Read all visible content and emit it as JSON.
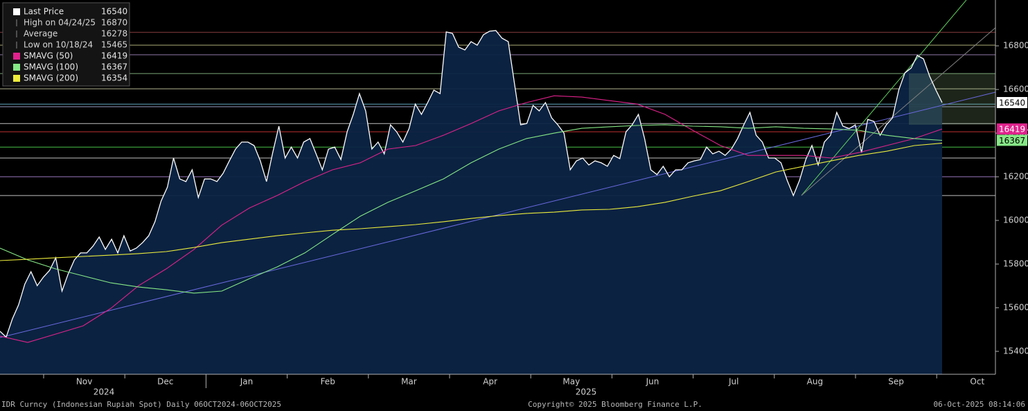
{
  "chart_data": {
    "type": "line",
    "footer_left": "IDR Curncy (Indonesian Rupiah Spot) Daily 06OCT2024-06OCT2025",
    "footer_center": "Copyright© 2025 Bloomberg Finance L.P.",
    "footer_right": "06-Oct-2025 08:14:06",
    "month_labels": [
      null,
      "Nov",
      "Dec",
      "Jan",
      "Feb",
      "Mar",
      "Apr",
      "May",
      "Jun",
      "Jul",
      "Aug",
      "Sep",
      "Oct"
    ],
    "year_labels": [
      "2024",
      "2025"
    ],
    "ylim": [
      15295,
      17010
    ],
    "yticks": [
      15400,
      15600,
      15800,
      16000,
      16200,
      16400,
      16600,
      16800
    ],
    "series": [
      {
        "name": "Last Price",
        "color": "#ffffff",
        "last": 16540,
        "values": [
          15492,
          15465,
          15549,
          15613,
          15708,
          15765,
          15701,
          15740,
          15771,
          15829,
          15676,
          15755,
          15819,
          15851,
          15851,
          15882,
          15924,
          15867,
          15914,
          15851,
          15930,
          15860,
          15873,
          15898,
          15930,
          15994,
          16089,
          16152,
          16286,
          16190,
          16178,
          16232,
          16105,
          16190,
          16190,
          16178,
          16216,
          16273,
          16327,
          16359,
          16359,
          16343,
          16273,
          16178,
          16311,
          16432,
          16286,
          16336,
          16286,
          16359,
          16375,
          16305,
          16232,
          16327,
          16336,
          16279,
          16406,
          16486,
          16581,
          16502,
          16327,
          16359,
          16305,
          16438,
          16406,
          16359,
          16421,
          16533,
          16486,
          16540,
          16597,
          16581,
          16864,
          16857,
          16794,
          16781,
          16819,
          16803,
          16851,
          16867,
          16870,
          16835,
          16819,
          16629,
          16438,
          16444,
          16527,
          16502,
          16540,
          16470,
          16438,
          16400,
          16232,
          16273,
          16286,
          16254,
          16273,
          16264,
          16248,
          16298,
          16283,
          16406,
          16438,
          16486,
          16375,
          16232,
          16210,
          16248,
          16200,
          16232,
          16232,
          16264,
          16273,
          16279,
          16336,
          16305,
          16317,
          16298,
          16327,
          16375,
          16438,
          16495,
          16390,
          16359,
          16286,
          16286,
          16264,
          16184,
          16114,
          16184,
          16279,
          16343,
          16254,
          16359,
          16390,
          16495,
          16432,
          16421,
          16438,
          16311,
          16463,
          16454,
          16390,
          16438,
          16470,
          16597,
          16676,
          16698,
          16756,
          16740,
          16660,
          16597,
          16540
        ]
      },
      {
        "name": "SMAVG (50)",
        "color": "#e0228c",
        "last": 16419,
        "values": [
          15470,
          15441,
          15479,
          15517,
          15597,
          15701,
          15778,
          15867,
          15978,
          16057,
          16114,
          16178,
          16232,
          16264,
          16327,
          16343,
          16390,
          16444,
          16502,
          16540,
          16571,
          16565,
          16549,
          16533,
          16486,
          16413,
          16343,
          16298,
          16298,
          16298,
          16286,
          16311,
          16343,
          16375,
          16419
        ]
      },
      {
        "name": "SMAVG (100)",
        "color": "#86e886",
        "last": 16367,
        "values": [
          15873,
          15819,
          15778,
          15746,
          15714,
          15695,
          15682,
          15667,
          15676,
          15733,
          15787,
          15851,
          15936,
          16019,
          16083,
          16136,
          16190,
          16264,
          16327,
          16375,
          16400,
          16422,
          16429,
          16435,
          16438,
          16432,
          16429,
          16422,
          16429,
          16422,
          16419,
          16413,
          16390,
          16375,
          16367
        ]
      },
      {
        "name": "SMAVG (200)",
        "color": "#ecec3c",
        "last": 16354,
        "values": [
          15816,
          15822,
          15829,
          15835,
          15841,
          15848,
          15857,
          15876,
          15898,
          15914,
          15930,
          15943,
          15955,
          15962,
          15971,
          15981,
          15994,
          16009,
          16022,
          16032,
          16038,
          16048,
          16051,
          16063,
          16083,
          16111,
          16136,
          16178,
          16222,
          16248,
          16273,
          16298,
          16317,
          16343,
          16354
        ]
      }
    ],
    "stats": [
      {
        "label": "High on 04/24/25",
        "value": 16870
      },
      {
        "label": "Average",
        "value": 16278
      },
      {
        "label": "Low on 10/18/24",
        "value": 15465
      }
    ],
    "reference_lines": [
      {
        "value": 16862,
        "color": "#b05050"
      },
      {
        "value": 16803,
        "color": "#e8e8a0"
      },
      {
        "value": 16759,
        "color": "#c0a0e0"
      },
      {
        "value": 16673,
        "color": "#a0e0a0"
      },
      {
        "value": 16603,
        "color": "#f0f0c0"
      },
      {
        "value": 16533,
        "color": "#80e0ff"
      },
      {
        "value": 16521,
        "color": "#c8d0ff"
      },
      {
        "value": 16444,
        "color": "#ffffff"
      },
      {
        "value": 16406,
        "color": "#ff4040"
      },
      {
        "value": 16336,
        "color": "#60ff60"
      },
      {
        "value": 16286,
        "color": "#ffffff"
      },
      {
        "value": 16200,
        "color": "#d0a0ff"
      },
      {
        "value": 16114,
        "color": "#ffffff"
      }
    ]
  }
}
